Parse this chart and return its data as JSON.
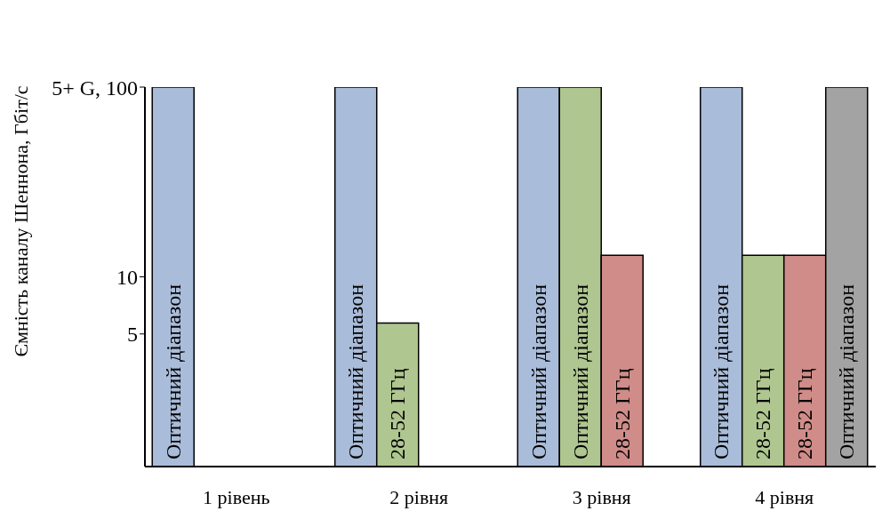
{
  "chart_data": {
    "type": "bar",
    "ylabel": "Ємність каналу Шеннона, Гбіт/с",
    "categories": [
      "1 рівень",
      "2 рівня",
      "3 рівня",
      "4 рівня"
    ],
    "series": [
      {
        "color": "#a9bcd9",
        "values": [
          100,
          100,
          100,
          100
        ],
        "value_labels": [
          "Оптичний діапазон",
          "Оптичний діапазон",
          "Оптичний діапазон",
          "Оптичний діапазон"
        ]
      },
      {
        "color": "#afc690",
        "values": [
          null,
          5.7,
          100,
          13
        ],
        "value_labels": [
          null,
          "28-52 ГГц",
          "Оптичний діапазон",
          "28-52 ГГц"
        ]
      },
      {
        "color": "#cf8c88",
        "values": [
          null,
          null,
          13,
          13
        ],
        "value_labels": [
          null,
          null,
          "28-52 ГГц",
          "28-52 ГГц"
        ]
      },
      {
        "color": "#a3a3a3",
        "values": [
          null,
          null,
          null,
          100
        ],
        "value_labels": [
          null,
          null,
          null,
          "Оптичний діапазон"
        ]
      }
    ],
    "ylim": [
      1,
      100
    ],
    "log": true,
    "yticks": [
      5,
      10,
      {
        "value": 100,
        "label": "5+ G, 100"
      }
    ],
    "grid": false,
    "legend": false
  }
}
